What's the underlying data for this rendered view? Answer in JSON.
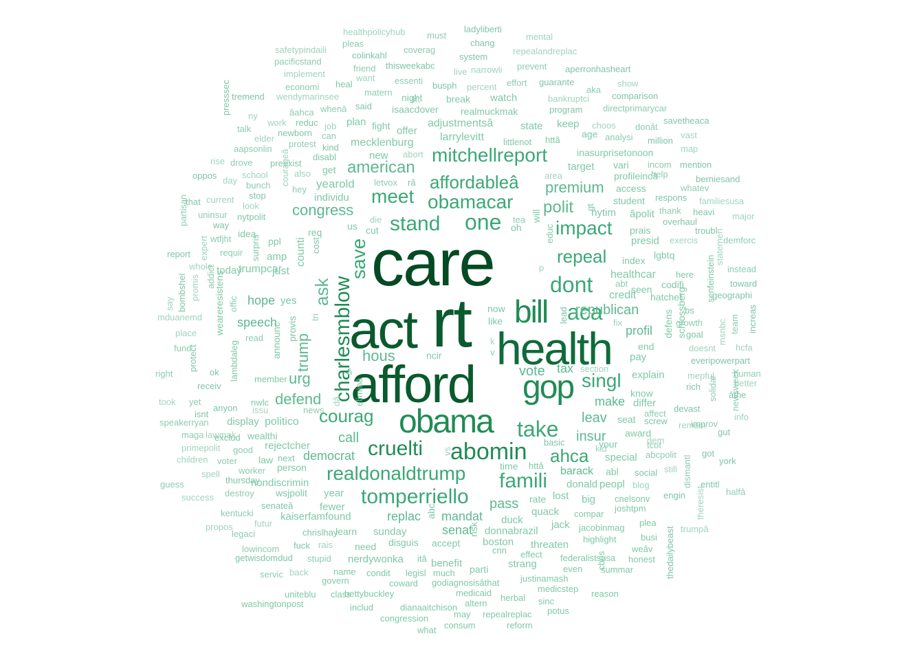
{
  "palette": [
    "#a8d8c4",
    "#7fc8a8",
    "#5db891",
    "#3aa876",
    "#218b56",
    "#0f6b3a",
    "#0a5a2e",
    "#044a24"
  ],
  "words": [
    {
      "t": "care",
      "c": 7
    },
    {
      "t": "rt",
      "c": 7
    },
    {
      "t": "act",
      "c": 6
    },
    {
      "t": "afford",
      "c": 6
    },
    {
      "t": "health",
      "c": 5
    },
    {
      "t": "obama",
      "c": 4
    },
    {
      "t": "gop",
      "c": 4
    },
    {
      "t": "bill",
      "c": 4
    },
    {
      "t": "charlesmblow",
      "c": 4
    },
    {
      "t": "abomin",
      "c": 4
    },
    {
      "t": "cruelti",
      "c": 4
    },
    {
      "t": "tomperriello",
      "c": 3
    },
    {
      "t": "realdonaldtrump",
      "c": 3
    },
    {
      "t": "mitchellreport",
      "c": 3
    },
    {
      "t": "obamacar",
      "c": 3
    },
    {
      "t": "stand",
      "c": 3
    },
    {
      "t": "one",
      "c": 3
    },
    {
      "t": "meet",
      "c": 3
    },
    {
      "t": "affordableâ",
      "c": 3
    },
    {
      "t": "courag",
      "c": 3
    },
    {
      "t": "famili",
      "c": 3
    },
    {
      "t": "take",
      "c": 3
    },
    {
      "t": "aca",
      "c": 3
    },
    {
      "t": "dont",
      "c": 3
    },
    {
      "t": "impact",
      "c": 3
    },
    {
      "t": "repeal",
      "c": 3
    },
    {
      "t": "singl",
      "c": 3
    },
    {
      "t": "ahca",
      "c": 3
    },
    {
      "t": "save",
      "c": 3
    },
    {
      "t": "ask",
      "c": 2
    },
    {
      "t": "american",
      "c": 2
    },
    {
      "t": "congress",
      "c": 2
    },
    {
      "t": "polit",
      "c": 2
    },
    {
      "t": "hous",
      "c": 2
    },
    {
      "t": "trump",
      "c": 2
    },
    {
      "t": "vote",
      "c": 2
    },
    {
      "t": "premium",
      "c": 2
    },
    {
      "t": "insur",
      "c": 2
    },
    {
      "t": "leav",
      "c": 2
    },
    {
      "t": "republican",
      "c": 2
    },
    {
      "t": "urg",
      "c": 2
    },
    {
      "t": "defend",
      "c": 2
    },
    {
      "t": "call",
      "c": 2
    },
    {
      "t": "pass",
      "c": 2
    },
    {
      "t": "democrat",
      "c": 2
    },
    {
      "t": "mandat",
      "c": 2
    },
    {
      "t": "replac",
      "c": 2
    },
    {
      "t": "senat",
      "c": 2
    },
    {
      "t": "tax",
      "c": 2
    },
    {
      "t": "make",
      "c": 2
    },
    {
      "t": "barack",
      "c": 2
    },
    {
      "t": "profil",
      "c": 2
    },
    {
      "t": "speech",
      "c": 2
    },
    {
      "t": "hope",
      "c": 2
    },
    {
      "t": "yearold",
      "c": 1
    },
    {
      "t": "individu",
      "c": 1
    },
    {
      "t": "mecklenburg",
      "c": 1
    },
    {
      "t": "adjustmentsâ",
      "c": 1
    },
    {
      "t": "larrylevitt",
      "c": 1
    },
    {
      "t": "counti",
      "c": 1
    },
    {
      "t": "healthcar",
      "c": 1
    },
    {
      "t": "credit",
      "c": 1
    },
    {
      "t": "explain",
      "c": 1
    },
    {
      "t": "differ",
      "c": 1
    },
    {
      "t": "nytim",
      "c": 1
    },
    {
      "t": "âpolit",
      "c": 1
    },
    {
      "t": "presid",
      "c": 1
    },
    {
      "t": "index",
      "c": 1
    },
    {
      "t": "lgbtq",
      "c": 1
    },
    {
      "t": "trumpcar",
      "c": 1
    },
    {
      "t": "today",
      "c": 1
    },
    {
      "t": "just",
      "c": 1
    },
    {
      "t": "amp",
      "c": 1
    },
    {
      "t": "yes",
      "c": 1
    },
    {
      "t": "politico",
      "c": 1
    },
    {
      "t": "display",
      "c": 1
    },
    {
      "t": "rejectcher",
      "c": 1
    },
    {
      "t": "person",
      "c": 1
    },
    {
      "t": "nondiscrimin",
      "c": 1
    },
    {
      "t": "wsjpolit",
      "c": 1
    },
    {
      "t": "year",
      "c": 1
    },
    {
      "t": "fewer",
      "c": 1
    },
    {
      "t": "kaiserfamfound",
      "c": 1
    },
    {
      "t": "learn",
      "c": 1
    },
    {
      "t": "sunday",
      "c": 1
    },
    {
      "t": "need",
      "c": 1
    },
    {
      "t": "disguis",
      "c": 1
    },
    {
      "t": "nerdywonka",
      "c": 1
    },
    {
      "t": "benefit",
      "c": 1
    },
    {
      "t": "accept",
      "c": 1
    },
    {
      "t": "boston",
      "c": 1
    },
    {
      "t": "threaten",
      "c": 1
    },
    {
      "t": "strang",
      "c": 1
    },
    {
      "t": "parti",
      "c": 1
    },
    {
      "t": "donnabrazil",
      "c": 1
    },
    {
      "t": "duck",
      "c": 1
    },
    {
      "t": "jack",
      "c": 1
    },
    {
      "t": "quack",
      "c": 1
    },
    {
      "t": "rate",
      "c": 1
    },
    {
      "t": "lost",
      "c": 1
    },
    {
      "t": "big",
      "c": 1
    },
    {
      "t": "donald",
      "c": 1
    },
    {
      "t": "peopl",
      "c": 1
    },
    {
      "t": "abl",
      "c": 1
    },
    {
      "t": "special",
      "c": 1
    },
    {
      "t": "your",
      "c": 1
    },
    {
      "t": "award",
      "c": 1
    },
    {
      "t": "seat",
      "c": 1
    },
    {
      "t": "pay",
      "c": 1
    },
    {
      "t": "end",
      "c": 1
    },
    {
      "t": "know",
      "c": 1
    },
    {
      "t": "defens",
      "c": 1
    },
    {
      "t": "schlossberg",
      "c": 1
    },
    {
      "t": "codifi",
      "c": 1
    },
    {
      "t": "hatchet",
      "c": 1
    },
    {
      "t": "here",
      "c": 1
    },
    {
      "t": "seen",
      "c": 1
    },
    {
      "t": "student",
      "c": 1
    },
    {
      "t": "access",
      "c": 1
    },
    {
      "t": "profileincâ",
      "c": 1
    },
    {
      "t": "prais",
      "c": 1
    },
    {
      "t": "inasurprisetonoon",
      "c": 1
    },
    {
      "t": "target",
      "c": 1
    },
    {
      "t": "vari",
      "c": 1
    },
    {
      "t": "state",
      "c": 1
    },
    {
      "t": "keep",
      "c": 1
    },
    {
      "t": "age",
      "c": 1
    },
    {
      "t": "httâ",
      "c": 1
    },
    {
      "t": "littlenot",
      "c": 1
    },
    {
      "t": "realmuckmak",
      "c": 1
    },
    {
      "t": "watch",
      "c": 1
    },
    {
      "t": "break",
      "c": 1
    },
    {
      "t": "night",
      "c": 1
    },
    {
      "t": "isaacdover",
      "c": 1
    },
    {
      "t": "plan",
      "c": 1
    },
    {
      "t": "fight",
      "c": 1
    },
    {
      "t": "offer",
      "c": 1
    },
    {
      "t": "new",
      "c": 1
    },
    {
      "t": "get",
      "c": 1
    },
    {
      "t": "cut",
      "c": 1
    },
    {
      "t": "us",
      "c": 1
    },
    {
      "t": "req",
      "c": 1
    },
    {
      "t": "ppl",
      "c": 1
    },
    {
      "t": "idea",
      "c": 1
    },
    {
      "t": "nytpolit",
      "c": 1
    },
    {
      "t": "surpris",
      "c": 1
    },
    {
      "t": "weareresistens",
      "c": 1
    },
    {
      "t": "lambdaleg",
      "c": 1
    },
    {
      "t": "member",
      "c": 1
    },
    {
      "t": "announc",
      "c": 1
    },
    {
      "t": "provis",
      "c": 1
    },
    {
      "t": "nwlc",
      "c": 1
    },
    {
      "t": "wealthi",
      "c": 1
    },
    {
      "t": "law",
      "c": 1
    },
    {
      "t": "ncir",
      "c": 1
    },
    {
      "t": "educ",
      "c": 1
    },
    {
      "t": "will",
      "c": 1
    },
    {
      "t": "oh",
      "c": 1
    },
    {
      "t": "now",
      "c": 1
    },
    {
      "t": "like",
      "c": 1
    },
    {
      "t": "time",
      "c": 1
    },
    {
      "t": "httâ",
      "c": 1
    },
    {
      "t": "abc",
      "c": 1
    },
    {
      "t": "risk",
      "c": 1
    },
    {
      "t": "cnn",
      "c": 1
    },
    {
      "t": "effect",
      "c": 1
    },
    {
      "t": "justinamash",
      "c": 1
    },
    {
      "t": "medicstep",
      "c": 1
    },
    {
      "t": "compar",
      "c": 1
    },
    {
      "t": "highlight",
      "c": 1
    },
    {
      "t": "jacobinmag",
      "c": 1
    },
    {
      "t": "cnelsonv",
      "c": 1
    },
    {
      "t": "joshtpm",
      "c": 1
    },
    {
      "t": "plea",
      "c": 1
    },
    {
      "t": "busi",
      "c": 1
    },
    {
      "t": "weâv",
      "c": 1
    },
    {
      "t": "honest",
      "c": 1
    },
    {
      "t": "federalistsusa",
      "c": 1
    },
    {
      "t": "even",
      "c": 1
    },
    {
      "t": "summar",
      "c": 1
    },
    {
      "t": "cbos",
      "c": 1
    },
    {
      "t": "reason",
      "c": 1
    },
    {
      "t": "sinc",
      "c": 1
    },
    {
      "t": "potus",
      "c": 1
    },
    {
      "t": "herbal",
      "c": 1
    },
    {
      "t": "medicaid",
      "c": 1
    },
    {
      "t": "godiagnosisâthat",
      "c": 1
    },
    {
      "t": "much",
      "c": 1
    },
    {
      "t": "coward",
      "c": 1
    },
    {
      "t": "legisl",
      "c": 1
    },
    {
      "t": "condit",
      "c": 1
    },
    {
      "t": "name",
      "c": 1
    },
    {
      "t": "govern",
      "c": 1
    },
    {
      "t": "bettybuckley",
      "c": 1
    },
    {
      "t": "class",
      "c": 1
    },
    {
      "t": "uniteblu",
      "c": 1
    },
    {
      "t": "washingtonpost",
      "c": 1
    },
    {
      "t": "includ",
      "c": 1
    },
    {
      "t": "dianaaitchison",
      "c": 1
    },
    {
      "t": "congression",
      "c": 1
    },
    {
      "t": "what",
      "c": 1
    },
    {
      "t": "consum",
      "c": 1
    },
    {
      "t": "reform",
      "c": 1
    },
    {
      "t": "may",
      "c": 1
    },
    {
      "t": "altern",
      "c": 1
    },
    {
      "t": "repealreplac",
      "c": 1
    },
    {
      "t": "itâ",
      "c": 1
    }
  ],
  "light_words": [
    "healthpolicyhub",
    "must",
    "ladyliberti",
    "mental",
    "pleas",
    "chang",
    "safetypindaili",
    "coverag",
    "system",
    "repealandreplac",
    "pacificstand",
    "colinkahl",
    "narrowli",
    "prevent",
    "aperronhasheart",
    "implement",
    "friend",
    "thisweekabc",
    "live",
    "essenti",
    "heal",
    "want",
    "effort",
    "guarante",
    "show",
    "economi",
    "tremend",
    "wendymarinsee",
    "matern",
    "busph",
    "percent",
    "aka",
    "comparison",
    "bankruptci",
    "directprimarycar",
    "said",
    "lift",
    "whenâ",
    "program",
    "ny",
    "âahca",
    "reduc",
    "choos",
    "donât",
    "savetheaca",
    "work",
    "talk",
    "newborn",
    "job",
    "can",
    "presssec",
    "elder",
    "analysi",
    "million",
    "vast",
    "protest",
    "kind",
    "map",
    "aapsonlin",
    "disabl",
    "abort",
    "incom",
    "mention",
    "rise",
    "drove",
    "preexist",
    "also",
    "help",
    "oppos",
    "school",
    "letvox",
    "râ",
    "area",
    "whatev",
    "berniesand",
    "day",
    "bunch",
    "stop",
    "courageâ",
    "hey",
    "respons",
    "familiesusa",
    "partisan",
    "that",
    "current",
    "thank",
    "heavi",
    "look",
    "uninsur",
    "way",
    "die",
    "tea",
    "overhaul",
    "major",
    "wtfjht",
    "troubl",
    "expert",
    "requir",
    "cost",
    "exercis",
    "demforc",
    "report",
    "whole",
    "addict",
    "bombshel",
    "promis",
    "offic",
    "senfeinstein",
    "statemen",
    "instead",
    "toward",
    "say",
    "abt",
    "geographi",
    "mduanemd",
    "tri",
    "lead",
    "fix",
    "growth",
    "bs",
    "msnbc",
    "team",
    "increas",
    "place",
    "read",
    "goal",
    "hcfa",
    "fund",
    "protect",
    "dâ",
    "â",
    "eliminâ",
    "k",
    "v",
    "everipowerpart",
    "doesnt",
    "right",
    "ok",
    "mepful",
    "human",
    "receiv",
    "section",
    "solidar",
    "rich",
    "better",
    "newsweek",
    "âthe",
    "took",
    "yet",
    "anyon",
    "issu",
    "news",
    "devast",
    "info",
    "speakerryan",
    "isnt",
    "lawmak",
    "affect",
    "screw",
    "remain",
    "maga",
    "exclud",
    "dem",
    "improv",
    "gut",
    "primepolit",
    "good",
    "basic",
    "kid",
    "tcot",
    "got",
    "children",
    "voter",
    "next",
    "vs",
    "abcpolit",
    "york",
    "spell",
    "worker",
    "social",
    "still",
    "guess",
    "thursday",
    "blog",
    "dismantl",
    "entitl",
    "success",
    "destroy",
    "engin",
    "theresist",
    "kentucki",
    "senateâ",
    "futur",
    "legaci",
    "chrislhay",
    "propos",
    "lowincom",
    "fuck",
    "rais",
    "stupid",
    "getwisdomdud",
    "back",
    "servic",
    "thedailybeast",
    "trumpâ",
    "halfâ",
    "gt",
    "p"
  ]
}
